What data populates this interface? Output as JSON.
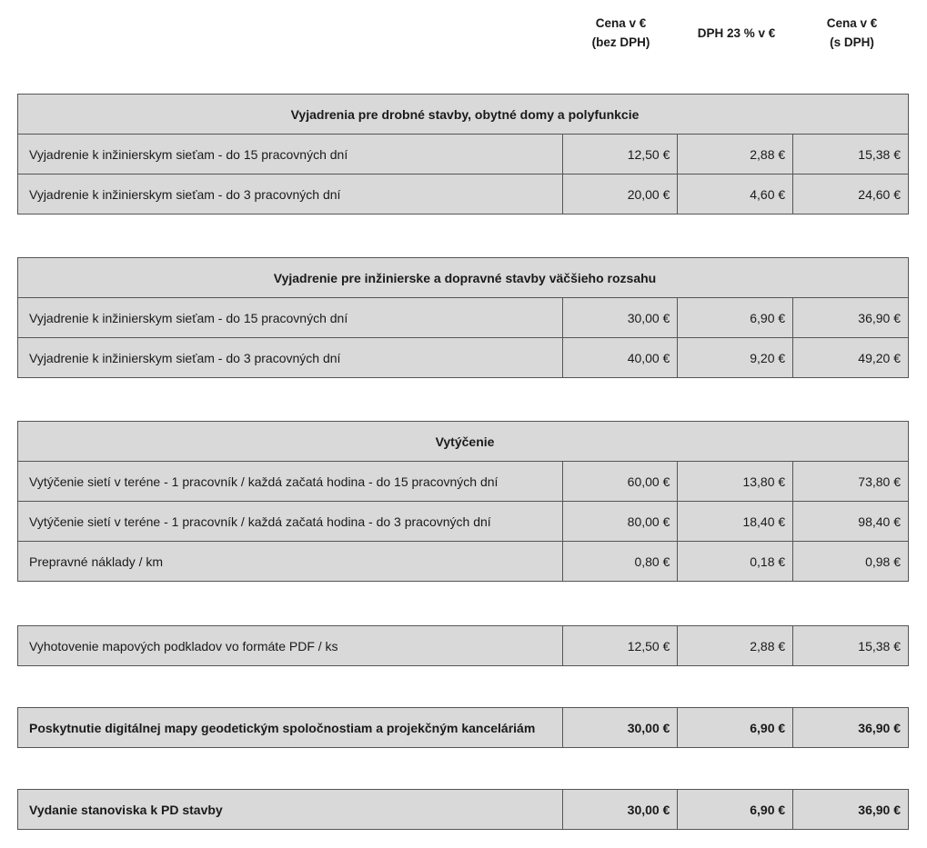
{
  "columns": {
    "price_without_vat": "Cena v €\n(bez DPH)",
    "vat": "DPH 23 % v €",
    "price_with_vat": "Cena v €\n(s DPH)"
  },
  "sections": [
    {
      "title": "Vyjadrenia pre drobné stavby, obytné domy a polyfunkcie",
      "bold": false,
      "rows": [
        {
          "desc": "Vyjadrenie k inžinierskym sieťam - do 15 pracovných dní",
          "net": "12,50 €",
          "vat": "2,88 €",
          "gross": "15,38 €"
        },
        {
          "desc": "Vyjadrenie k inžinierskym sieťam - do 3 pracovných dní",
          "net": "20,00 €",
          "vat": "4,60 €",
          "gross": "24,60 €"
        }
      ]
    },
    {
      "title": "Vyjadrenie pre inžinierske a dopravné stavby väčšieho rozsahu",
      "bold": false,
      "rows": [
        {
          "desc": "Vyjadrenie k inžinierskym sieťam - do 15 pracovných dní",
          "net": "30,00 €",
          "vat": "6,90 €",
          "gross": "36,90 €"
        },
        {
          "desc": "Vyjadrenie k inžinierskym sieťam - do 3 pracovných dní",
          "net": "40,00 €",
          "vat": "9,20 €",
          "gross": "49,20 €"
        }
      ]
    },
    {
      "title": "Vytýčenie",
      "bold": false,
      "rows": [
        {
          "desc": "Vytýčenie sietí v teréne - 1 pracovník / každá začatá hodina - do 15 pracovných dní",
          "net": "60,00 €",
          "vat": "13,80 €",
          "gross": "73,80 €"
        },
        {
          "desc": "Vytýčenie sietí v teréne - 1 pracovník / každá začatá hodina - do 3 pracovných dní",
          "net": "80,00 €",
          "vat": "18,40 €",
          "gross": "98,40 €"
        },
        {
          "desc": "Prepravné náklady / km",
          "net": "0,80 €",
          "vat": "0,18 €",
          "gross": "0,98 €"
        }
      ]
    },
    {
      "title": "",
      "bold": false,
      "rows": [
        {
          "desc": "Vyhotovenie mapových podkladov vo formáte PDF / ks",
          "net": "12,50 €",
          "vat": "2,88 €",
          "gross": "15,38 €"
        }
      ]
    },
    {
      "title": "",
      "bold": true,
      "rows": [
        {
          "desc": "Poskytnutie digitálnej mapy geodetickým spoločnostiam a projekčným kanceláriám",
          "net": "30,00 €",
          "vat": "6,90 €",
          "gross": "36,90 €"
        }
      ]
    },
    {
      "title": "",
      "bold": true,
      "rows": [
        {
          "desc": "Vydanie stanoviska k PD stavby",
          "net": "30,00 €",
          "vat": "6,90 €",
          "gross": "36,90 €"
        }
      ]
    }
  ]
}
